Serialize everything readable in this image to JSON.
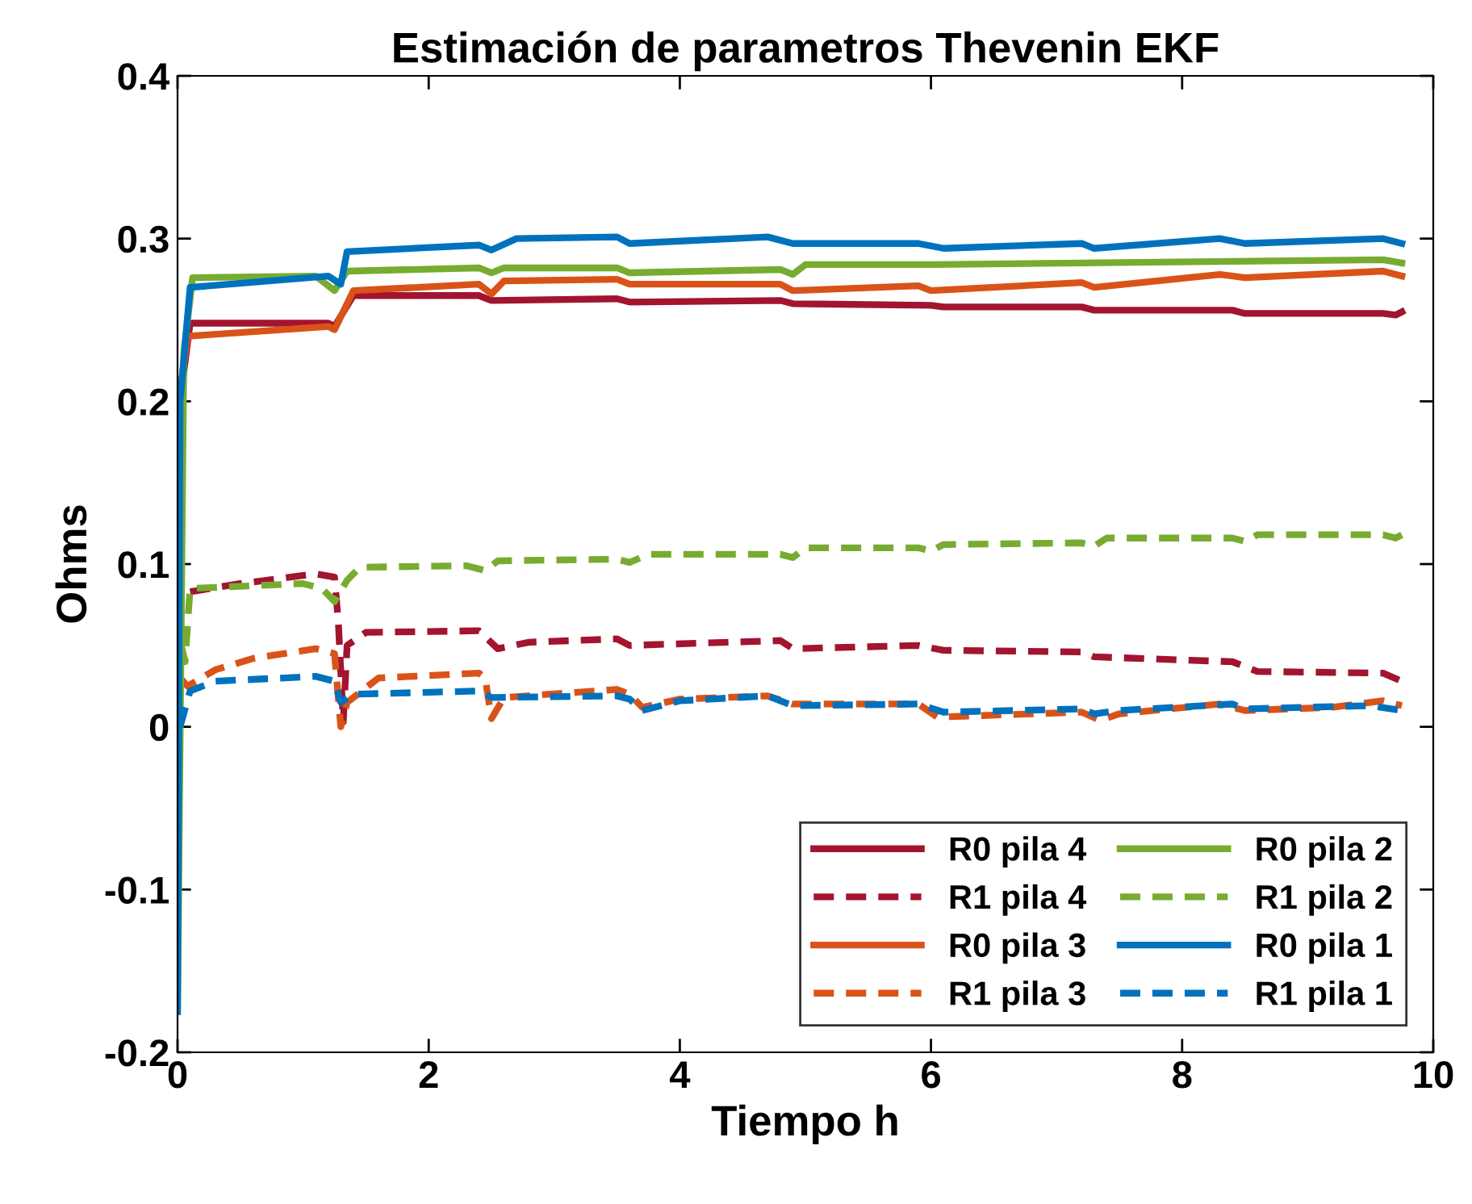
{
  "chart_data": {
    "type": "line",
    "title": "Estimación de parametros Thevenin EKF",
    "xlabel": "Tiempo h",
    "ylabel": "Ohms",
    "xlim": [
      0,
      10
    ],
    "xticks": [
      0,
      2,
      4,
      6,
      8,
      10
    ],
    "ylim": [
      -0.2,
      0.4
    ],
    "yticks": [
      {
        "value": -0.2,
        "label": "-0.2"
      },
      {
        "value": -0.1,
        "label": "-0.1"
      },
      0,
      0.1,
      0.2,
      0.3,
      0.4
    ],
    "grid": false,
    "legend": "bottom right",
    "marker": "none",
    "series": [
      {
        "name": "R0 pila 4",
        "color": "#a2142f",
        "line_style": "solid",
        "x": [
          0.02,
          0.1,
          1.2,
          1.25,
          1.4,
          2.4,
          2.5,
          3.5,
          3.6,
          4.8,
          4.9,
          6.0,
          6.1,
          7.2,
          7.3,
          8.4,
          8.5,
          9.6,
          9.7,
          9.75
        ],
        "values": [
          0.2,
          0.248,
          0.248,
          0.246,
          0.265,
          0.265,
          0.262,
          0.263,
          0.261,
          0.262,
          0.26,
          0.259,
          0.258,
          0.258,
          0.256,
          0.256,
          0.254,
          0.254,
          0.253,
          0.255
        ]
      },
      {
        "name": "R1 pila 4",
        "color": "#a2142f",
        "line_style": "dashed",
        "x": [
          0.1,
          0.5,
          1.1,
          1.25,
          1.28,
          1.32,
          1.35,
          1.5,
          2.4,
          2.55,
          2.8,
          3.5,
          3.6,
          4.8,
          4.9,
          5.9,
          6.1,
          7.2,
          7.3,
          8.4,
          8.6,
          9.6,
          9.75
        ],
        "values": [
          0.083,
          0.088,
          0.094,
          0.092,
          0.065,
          0.003,
          0.05,
          0.058,
          0.059,
          0.048,
          0.052,
          0.054,
          0.05,
          0.053,
          0.048,
          0.05,
          0.047,
          0.046,
          0.043,
          0.04,
          0.034,
          0.033,
          0.028
        ]
      },
      {
        "name": "R0 pila 3",
        "color": "#d95319",
        "line_style": "solid",
        "x": [
          0.01,
          0.08,
          1.2,
          1.25,
          1.4,
          2.4,
          2.5,
          2.6,
          3.5,
          3.6,
          4.8,
          4.9,
          5.9,
          6.0,
          7.2,
          7.3,
          8.3,
          8.5,
          9.6,
          9.75
        ],
        "values": [
          0.2,
          0.24,
          0.246,
          0.244,
          0.268,
          0.272,
          0.266,
          0.274,
          0.275,
          0.272,
          0.272,
          0.268,
          0.271,
          0.268,
          0.273,
          0.27,
          0.278,
          0.276,
          0.28,
          0.277
        ]
      },
      {
        "name": "R1 pila 3",
        "color": "#d95319",
        "line_style": "dashed",
        "x": [
          0.02,
          0.08,
          0.3,
          0.6,
          1.1,
          1.25,
          1.3,
          1.35,
          1.6,
          2.4,
          2.45,
          2.5,
          2.6,
          3.5,
          3.6,
          3.7,
          4.0,
          4.7,
          4.9,
          5.9,
          6.05,
          7.2,
          7.35,
          7.5,
          8.3,
          8.5,
          9.2,
          9.6,
          9.75
        ],
        "values": [
          0.03,
          0.025,
          0.035,
          0.042,
          0.048,
          0.045,
          0.0,
          0.015,
          0.03,
          0.033,
          0.03,
          0.005,
          0.018,
          0.023,
          0.02,
          0.012,
          0.017,
          0.019,
          0.014,
          0.014,
          0.006,
          0.009,
          0.004,
          0.008,
          0.014,
          0.01,
          0.012,
          0.016,
          0.013
        ]
      },
      {
        "name": "R0 pila 2",
        "color": "#77ac30",
        "line_style": "solid",
        "x": [
          0,
          0.05,
          0.12,
          1.1,
          1.25,
          1.35,
          2.4,
          2.5,
          2.6,
          3.5,
          3.6,
          4.8,
          4.9,
          5.0,
          6.0,
          7.2,
          8.4,
          9.6,
          9.75
        ],
        "values": [
          -0.175,
          0.23,
          0.276,
          0.277,
          0.268,
          0.28,
          0.282,
          0.279,
          0.282,
          0.282,
          0.279,
          0.281,
          0.278,
          0.284,
          0.284,
          0.285,
          0.286,
          0.287,
          0.285
        ]
      },
      {
        "name": "R1 pila 2",
        "color": "#77ac30",
        "line_style": "dashed",
        "x": [
          0.03,
          0.06,
          0.1,
          1.0,
          1.15,
          1.25,
          1.35,
          1.45,
          2.3,
          2.45,
          2.55,
          3.5,
          3.6,
          3.75,
          4.8,
          4.9,
          5.0,
          5.9,
          6.0,
          6.1,
          7.2,
          7.3,
          7.4,
          8.4,
          8.5,
          8.6,
          9.6,
          9.7,
          9.75
        ],
        "values": [
          0.05,
          0.04,
          0.085,
          0.088,
          0.085,
          0.077,
          0.09,
          0.098,
          0.099,
          0.096,
          0.102,
          0.103,
          0.101,
          0.106,
          0.106,
          0.104,
          0.11,
          0.11,
          0.108,
          0.112,
          0.113,
          0.111,
          0.116,
          0.116,
          0.114,
          0.118,
          0.118,
          0.116,
          0.118
        ]
      },
      {
        "name": "R0 pila 1",
        "color": "#0072bd",
        "line_style": "solid",
        "x": [
          0,
          0.02,
          0.1,
          1.2,
          1.3,
          1.35,
          2.4,
          2.5,
          2.7,
          3.5,
          3.6,
          4.7,
          4.9,
          5.9,
          6.1,
          7.2,
          7.3,
          8.3,
          8.5,
          9.6,
          9.75
        ],
        "values": [
          -0.175,
          0.2,
          0.27,
          0.277,
          0.272,
          0.292,
          0.296,
          0.293,
          0.3,
          0.301,
          0.297,
          0.301,
          0.297,
          0.297,
          0.294,
          0.297,
          0.294,
          0.3,
          0.297,
          0.3,
          0.297
        ]
      },
      {
        "name": "R1 pila 1",
        "color": "#0072bd",
        "line_style": "dashed",
        "x": [
          0.02,
          0.1,
          0.3,
          1.1,
          1.25,
          1.3,
          1.4,
          2.4,
          2.5,
          3.5,
          3.6,
          3.7,
          4.0,
          4.7,
          4.9,
          5.9,
          6.1,
          7.2,
          7.3,
          7.5,
          8.4,
          8.5,
          9.5,
          9.75
        ],
        "values": [
          0.0,
          0.022,
          0.028,
          0.031,
          0.028,
          0.015,
          0.02,
          0.022,
          0.018,
          0.019,
          0.017,
          0.01,
          0.016,
          0.019,
          0.013,
          0.014,
          0.009,
          0.011,
          0.008,
          0.01,
          0.014,
          0.011,
          0.013,
          0.01
        ]
      }
    ]
  }
}
